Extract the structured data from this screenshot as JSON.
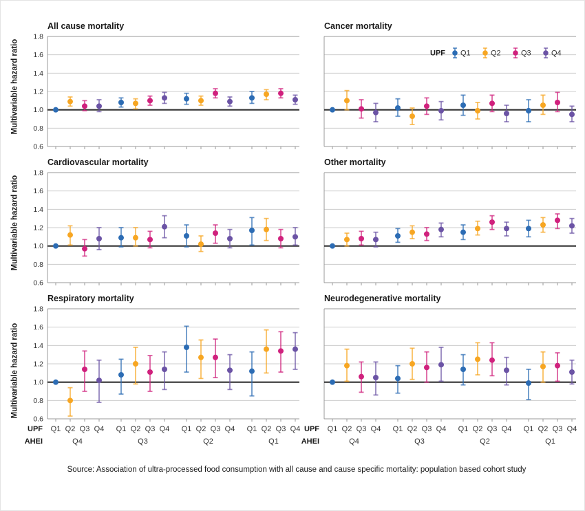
{
  "figure": {
    "ylabel": "Multivariable hazard ratio",
    "source": "Source: Association of ultra-processed food consumption with all cause and cause specific mortality: population based cohort study"
  },
  "colors": {
    "grid": "#cccccc",
    "border": "#999999",
    "reference_line": "#333333",
    "text": "#333333",
    "q1_blue": "#2c6cb4",
    "q2_orange": "#f7a622",
    "q3_magenta": "#d0217d",
    "q4_purple": "#6b53a5"
  },
  "legend": {
    "title": "UPF",
    "entries": [
      {
        "label": "Q1",
        "color": "#2c6cb4"
      },
      {
        "label": "Q2",
        "color": "#f7a622"
      },
      {
        "label": "Q3",
        "color": "#d0217d"
      },
      {
        "label": "Q4",
        "color": "#6b53a5"
      }
    ]
  },
  "x_axis": {
    "upf_header": "UPF",
    "ahei_header": "AHEI",
    "upf_ticks": [
      "Q1",
      "Q2",
      "Q3",
      "Q4"
    ],
    "ahei_groups": [
      "Q4",
      "Q3",
      "Q2",
      "Q1"
    ]
  },
  "chart_data": [
    {
      "type": "scatter",
      "title": "All cause mortality",
      "ylabel": "Multivariable hazard ratio",
      "ylim": [
        0.6,
        1.8
      ],
      "yticks": [
        0.6,
        0.8,
        1.0,
        1.2,
        1.4,
        1.6,
        1.8
      ],
      "reference_line": 1.0,
      "groups": [
        "Q4",
        "Q3",
        "Q2",
        "Q1"
      ],
      "y_tick_labels": true,
      "x_axis_labels": false,
      "show_legend": false,
      "series": [
        {
          "name": "Q1",
          "color": "#2c6cb4",
          "values": [
            1.0,
            1.08,
            1.12,
            1.13
          ],
          "ci_low": [
            1.0,
            1.03,
            1.06,
            1.07
          ],
          "ci_high": [
            1.0,
            1.13,
            1.18,
            1.2
          ]
        },
        {
          "name": "Q2",
          "color": "#f7a622",
          "values": [
            1.09,
            1.07,
            1.1,
            1.17
          ],
          "ci_low": [
            1.04,
            1.01,
            1.05,
            1.11
          ],
          "ci_high": [
            1.14,
            1.12,
            1.15,
            1.22
          ]
        },
        {
          "name": "Q3",
          "color": "#d0217d",
          "values": [
            1.04,
            1.1,
            1.18,
            1.18
          ],
          "ci_low": [
            0.99,
            1.05,
            1.13,
            1.13
          ],
          "ci_high": [
            1.1,
            1.15,
            1.23,
            1.23
          ]
        },
        {
          "name": "Q4",
          "color": "#6b53a5",
          "values": [
            1.04,
            1.13,
            1.09,
            1.11
          ],
          "ci_low": [
            0.98,
            1.07,
            1.04,
            1.06
          ],
          "ci_high": [
            1.11,
            1.19,
            1.14,
            1.16
          ]
        }
      ]
    },
    {
      "type": "scatter",
      "title": "Cancer mortality",
      "ylabel": "Multivariable hazard ratio",
      "ylim": [
        0.6,
        1.8
      ],
      "yticks": [
        0.6,
        0.8,
        1.0,
        1.2,
        1.4,
        1.6,
        1.8
      ],
      "reference_line": 1.0,
      "groups": [
        "Q4",
        "Q3",
        "Q2",
        "Q1"
      ],
      "y_tick_labels": false,
      "x_axis_labels": false,
      "show_legend": true,
      "series": [
        {
          "name": "Q1",
          "color": "#2c6cb4",
          "values": [
            1.0,
            1.02,
            1.05,
            0.99
          ],
          "ci_low": [
            1.0,
            0.93,
            0.94,
            0.87
          ],
          "ci_high": [
            1.0,
            1.12,
            1.16,
            1.11
          ]
        },
        {
          "name": "Q2",
          "color": "#f7a622",
          "values": [
            1.1,
            0.93,
            0.99,
            1.05
          ],
          "ci_low": [
            1.0,
            0.84,
            0.9,
            0.95
          ],
          "ci_high": [
            1.21,
            1.02,
            1.08,
            1.16
          ]
        },
        {
          "name": "Q3",
          "color": "#d0217d",
          "values": [
            1.01,
            1.04,
            1.07,
            1.08
          ],
          "ci_low": [
            0.91,
            0.95,
            0.98,
            0.98
          ],
          "ci_high": [
            1.11,
            1.13,
            1.16,
            1.19
          ]
        },
        {
          "name": "Q4",
          "color": "#6b53a5",
          "values": [
            0.97,
            0.99,
            0.96,
            0.95
          ],
          "ci_low": [
            0.87,
            0.89,
            0.87,
            0.87
          ],
          "ci_high": [
            1.07,
            1.09,
            1.05,
            1.04
          ]
        }
      ]
    },
    {
      "type": "scatter",
      "title": "Cardiovascular mortality",
      "ylabel": "Multivariable hazard ratio",
      "ylim": [
        0.6,
        1.8
      ],
      "yticks": [
        0.6,
        0.8,
        1.0,
        1.2,
        1.4,
        1.6,
        1.8
      ],
      "reference_line": 1.0,
      "groups": [
        "Q4",
        "Q3",
        "Q2",
        "Q1"
      ],
      "y_tick_labels": true,
      "x_axis_labels": false,
      "show_legend": false,
      "series": [
        {
          "name": "Q1",
          "color": "#2c6cb4",
          "values": [
            1.0,
            1.09,
            1.11,
            1.17
          ],
          "ci_low": [
            1.0,
            0.99,
            0.99,
            1.01
          ],
          "ci_high": [
            1.0,
            1.2,
            1.23,
            1.31
          ]
        },
        {
          "name": "Q2",
          "color": "#f7a622",
          "values": [
            1.12,
            1.09,
            1.02,
            1.18
          ],
          "ci_low": [
            1.01,
            1.0,
            0.94,
            1.06
          ],
          "ci_high": [
            1.22,
            1.2,
            1.11,
            1.3
          ]
        },
        {
          "name": "Q3",
          "color": "#d0217d",
          "values": [
            0.97,
            1.07,
            1.14,
            1.08
          ],
          "ci_low": [
            0.89,
            0.98,
            1.03,
            0.98
          ],
          "ci_high": [
            1.07,
            1.16,
            1.23,
            1.18
          ]
        },
        {
          "name": "Q4",
          "color": "#6b53a5",
          "values": [
            1.08,
            1.21,
            1.08,
            1.1
          ],
          "ci_low": [
            0.96,
            1.09,
            0.98,
            1.01
          ],
          "ci_high": [
            1.2,
            1.33,
            1.18,
            1.2
          ]
        }
      ]
    },
    {
      "type": "scatter",
      "title": "Other mortality",
      "ylabel": "Multivariable hazard ratio",
      "ylim": [
        0.6,
        1.8
      ],
      "yticks": [
        0.6,
        0.8,
        1.0,
        1.2,
        1.4,
        1.6,
        1.8
      ],
      "reference_line": 1.0,
      "groups": [
        "Q4",
        "Q3",
        "Q2",
        "Q1"
      ],
      "y_tick_labels": false,
      "x_axis_labels": false,
      "show_legend": false,
      "series": [
        {
          "name": "Q1",
          "color": "#2c6cb4",
          "values": [
            1.0,
            1.11,
            1.15,
            1.19
          ],
          "ci_low": [
            1.0,
            1.04,
            1.07,
            1.1
          ],
          "ci_high": [
            1.0,
            1.19,
            1.23,
            1.28
          ]
        },
        {
          "name": "Q2",
          "color": "#f7a622",
          "values": [
            1.07,
            1.15,
            1.19,
            1.23
          ],
          "ci_low": [
            1.0,
            1.08,
            1.12,
            1.15
          ],
          "ci_high": [
            1.14,
            1.22,
            1.27,
            1.31
          ]
        },
        {
          "name": "Q3",
          "color": "#d0217d",
          "values": [
            1.08,
            1.13,
            1.26,
            1.28
          ],
          "ci_low": [
            1.01,
            1.06,
            1.18,
            1.19
          ],
          "ci_high": [
            1.16,
            1.2,
            1.33,
            1.35
          ]
        },
        {
          "name": "Q4",
          "color": "#6b53a5",
          "values": [
            1.07,
            1.18,
            1.19,
            1.22
          ],
          "ci_low": [
            0.99,
            1.1,
            1.11,
            1.14
          ],
          "ci_high": [
            1.15,
            1.25,
            1.26,
            1.3
          ]
        }
      ]
    },
    {
      "type": "scatter",
      "title": "Respiratory mortality",
      "ylabel": "Multivariable hazard ratio",
      "ylim": [
        0.6,
        1.8
      ],
      "yticks": [
        0.6,
        0.8,
        1.0,
        1.2,
        1.4,
        1.6,
        1.8
      ],
      "reference_line": 1.0,
      "groups": [
        "Q4",
        "Q3",
        "Q2",
        "Q1"
      ],
      "y_tick_labels": true,
      "x_axis_labels": true,
      "show_legend": false,
      "series": [
        {
          "name": "Q1",
          "color": "#2c6cb4",
          "values": [
            1.0,
            1.08,
            1.38,
            1.12
          ],
          "ci_low": [
            1.0,
            0.87,
            1.11,
            0.85
          ],
          "ci_high": [
            1.0,
            1.25,
            1.61,
            1.33
          ]
        },
        {
          "name": "Q2",
          "color": "#f7a622",
          "values": [
            0.8,
            1.2,
            1.27,
            1.36
          ],
          "ci_low": [
            0.63,
            0.98,
            1.04,
            1.1
          ],
          "ci_high": [
            0.94,
            1.38,
            1.46,
            1.57
          ]
        },
        {
          "name": "Q3",
          "color": "#d0217d",
          "values": [
            1.14,
            1.11,
            1.27,
            1.34
          ],
          "ci_low": [
            0.9,
            0.9,
            1.05,
            1.11
          ],
          "ci_high": [
            1.34,
            1.29,
            1.47,
            1.55
          ]
        },
        {
          "name": "Q4",
          "color": "#6b53a5",
          "values": [
            1.02,
            1.14,
            1.13,
            1.36
          ],
          "ci_low": [
            0.78,
            0.92,
            0.92,
            1.14
          ],
          "ci_high": [
            1.24,
            1.33,
            1.3,
            1.54
          ]
        }
      ]
    },
    {
      "type": "scatter",
      "title": "Neurodegenerative mortality",
      "ylabel": "Multivariable hazard ratio",
      "ylim": [
        0.6,
        1.8
      ],
      "yticks": [
        0.6,
        0.8,
        1.0,
        1.2,
        1.4,
        1.6,
        1.8
      ],
      "reference_line": 1.0,
      "groups": [
        "Q4",
        "Q3",
        "Q2",
        "Q1"
      ],
      "y_tick_labels": false,
      "x_axis_labels": true,
      "show_legend": false,
      "series": [
        {
          "name": "Q1",
          "color": "#2c6cb4",
          "values": [
            1.0,
            1.04,
            1.14,
            0.99
          ],
          "ci_low": [
            1.0,
            0.88,
            0.97,
            0.81
          ],
          "ci_high": [
            1.0,
            1.18,
            1.3,
            1.14
          ]
        },
        {
          "name": "Q2",
          "color": "#f7a622",
          "values": [
            1.18,
            1.2,
            1.25,
            1.17
          ],
          "ci_low": [
            1.01,
            1.03,
            1.08,
            1.0
          ],
          "ci_high": [
            1.36,
            1.37,
            1.43,
            1.33
          ]
        },
        {
          "name": "Q3",
          "color": "#d0217d",
          "values": [
            1.06,
            1.16,
            1.24,
            1.18
          ],
          "ci_low": [
            0.89,
            1.0,
            1.07,
            1.01
          ],
          "ci_high": [
            1.22,
            1.33,
            1.43,
            1.32
          ]
        },
        {
          "name": "Q4",
          "color": "#6b53a5",
          "values": [
            1.05,
            1.19,
            1.13,
            1.11
          ],
          "ci_low": [
            0.86,
            1.01,
            0.97,
            0.98
          ],
          "ci_high": [
            1.22,
            1.38,
            1.27,
            1.24
          ]
        }
      ]
    }
  ]
}
